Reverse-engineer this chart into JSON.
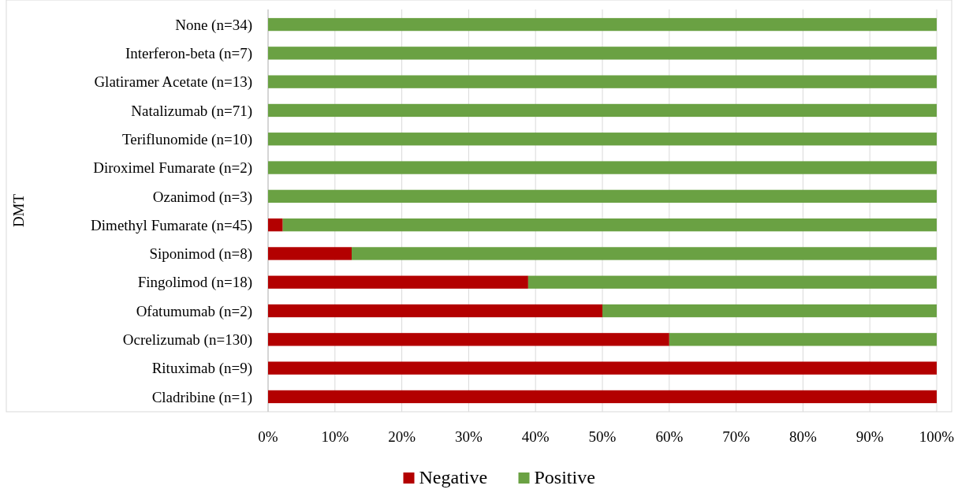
{
  "chart_data": {
    "type": "bar",
    "orientation": "horizontal",
    "stacked": true,
    "ylabel": "DMT",
    "categories": [
      "None (n=34)",
      "Interferon-beta (n=7)",
      "Glatiramer Acetate (n=13)",
      "Natalizumab (n=71)",
      "Teriflunomide (n=10)",
      "Diroximel Fumarate (n=2)",
      "Ozanimod (n=3)",
      "Dimethyl Fumarate (n=45)",
      "Siponimod (n=8)",
      "Fingolimod (n=18)",
      "Ofatumumab (n=2)",
      "Ocrelizumab (n=130)",
      "Rituximab (n=9)",
      "Cladribine (n=1)"
    ],
    "series": [
      {
        "name": "Negative",
        "color": "#b30000",
        "values": [
          0,
          0,
          0,
          0,
          0,
          0,
          0,
          2.2,
          12.5,
          38.9,
          50,
          60,
          100,
          100
        ]
      },
      {
        "name": "Positive",
        "color": "#6aa143",
        "values": [
          100,
          100,
          100,
          100,
          100,
          100,
          100,
          97.8,
          87.5,
          61.1,
          50,
          40,
          0,
          0
        ]
      }
    ],
    "xlim": [
      0,
      100
    ],
    "xticks": [
      {
        "value": 0,
        "label": "0%"
      },
      {
        "value": 10,
        "label": "10%"
      },
      {
        "value": 20,
        "label": "20%"
      },
      {
        "value": 30,
        "label": "30%"
      },
      {
        "value": 40,
        "label": "40%"
      },
      {
        "value": 50,
        "label": "50%"
      },
      {
        "value": 60,
        "label": "60%"
      },
      {
        "value": 70,
        "label": "70%"
      },
      {
        "value": 80,
        "label": "80%"
      },
      {
        "value": 90,
        "label": "90%"
      },
      {
        "value": 100,
        "label": "100%"
      }
    ],
    "grid": "x",
    "legend": "bottom"
  }
}
